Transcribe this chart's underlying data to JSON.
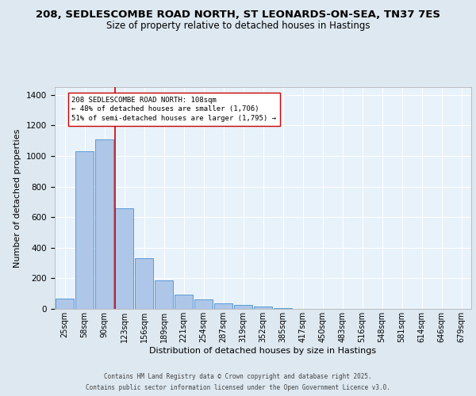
{
  "title1": "208, SEDLESCOMBE ROAD NORTH, ST LEONARDS-ON-SEA, TN37 7ES",
  "title2": "Size of property relative to detached houses in Hastings",
  "xlabel": "Distribution of detached houses by size in Hastings",
  "ylabel": "Number of detached properties",
  "categories": [
    "25sqm",
    "58sqm",
    "90sqm",
    "123sqm",
    "156sqm",
    "189sqm",
    "221sqm",
    "254sqm",
    "287sqm",
    "319sqm",
    "352sqm",
    "385sqm",
    "417sqm",
    "450sqm",
    "483sqm",
    "516sqm",
    "548sqm",
    "581sqm",
    "614sqm",
    "646sqm",
    "679sqm"
  ],
  "values": [
    65,
    1030,
    1110,
    660,
    330,
    185,
    95,
    60,
    35,
    25,
    15,
    5,
    0,
    0,
    0,
    0,
    0,
    0,
    0,
    0,
    0
  ],
  "bar_color": "#aec6e8",
  "bar_edge_color": "#5b9bd5",
  "red_line_x": 2.52,
  "annotation_text": "208 SEDLESCOMBE ROAD NORTH: 108sqm\n← 48% of detached houses are smaller (1,706)\n51% of semi-detached houses are larger (1,795) →",
  "annotation_box_color": "#ffffff",
  "annotation_box_edge": "#cc0000",
  "footer1": "Contains HM Land Registry data © Crown copyright and database right 2025.",
  "footer2": "Contains public sector information licensed under the Open Government Licence v3.0.",
  "ylim": [
    0,
    1450
  ],
  "bg_color": "#dde8f0",
  "plot_bg_color": "#e8f2fa",
  "grid_color": "#ffffff",
  "title_fontsize": 9.5,
  "subtitle_fontsize": 8.5,
  "ylabel_fontsize": 8,
  "xlabel_fontsize": 8,
  "tick_fontsize": 7,
  "ann_fontsize": 6.5,
  "footer_fontsize": 5.5
}
